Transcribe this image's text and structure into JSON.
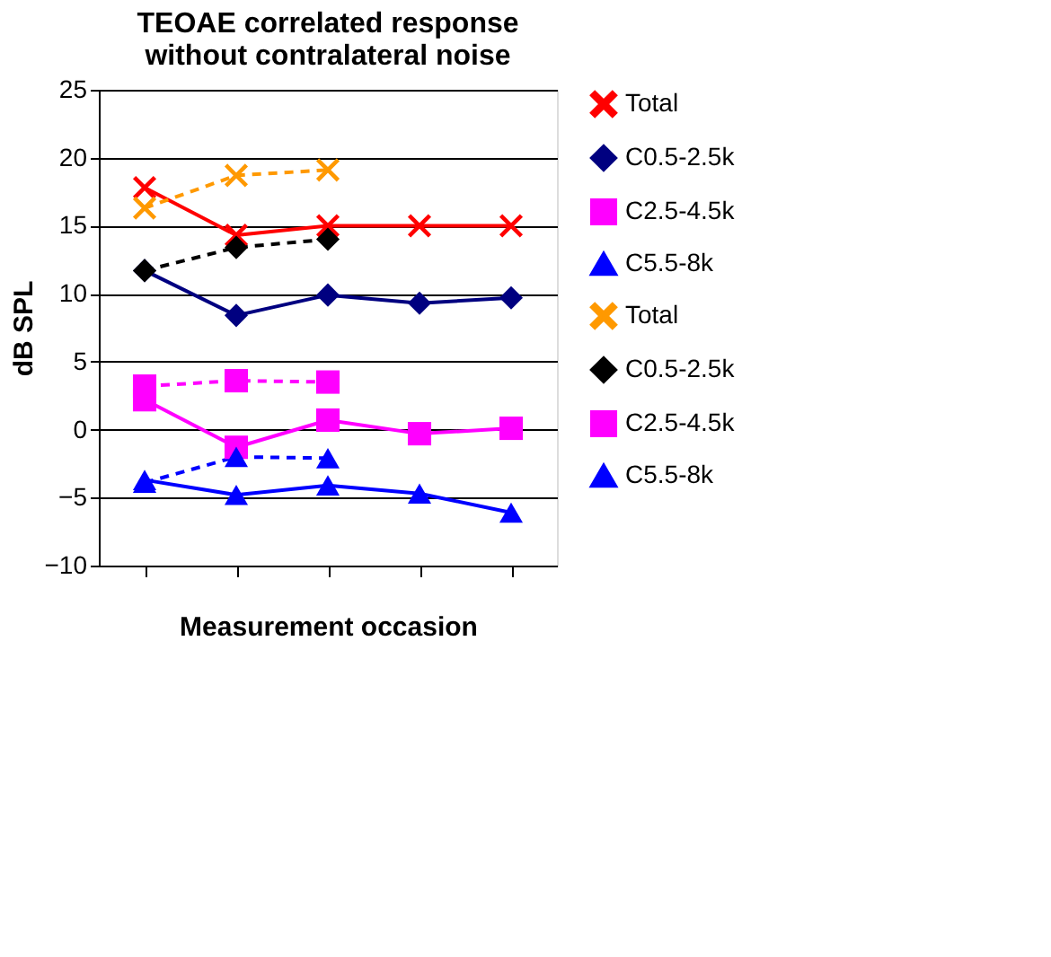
{
  "chart_data": {
    "type": "line",
    "title": "TEOAE correlated response\nwithout contralateral noise",
    "xlabel": "Measurement occasion",
    "ylabel": "dB SPL",
    "categories": [
      null,
      null,
      null,
      null,
      null
    ],
    "ylim": [
      -10,
      25
    ],
    "yticks": [
      -10,
      -5,
      0,
      5,
      10,
      15,
      20,
      25
    ],
    "grid": "y",
    "legend": "right",
    "series": [
      {
        "name": "Total",
        "color": "#ff0000",
        "marker": "cross",
        "line_style": "solid",
        "values": [
          17.8,
          14.3,
          15,
          15,
          15
        ]
      },
      {
        "name": "C0.5-2.5k",
        "color": "#000080",
        "marker": "diamond",
        "line_style": "solid",
        "values": [
          11.7,
          8.4,
          9.9,
          9.3,
          9.7
        ]
      },
      {
        "name": "C2.5-4.5k",
        "color": "#ff00ff",
        "marker": "square",
        "line_style": "solid",
        "values": [
          2.2,
          -1.3,
          0.7,
          -0.3,
          0.1
        ]
      },
      {
        "name": "C5.5-8k",
        "color": "#0000ff",
        "marker": "triangle",
        "line_style": "solid",
        "values": [
          -3.7,
          -4.8,
          -4.1,
          -4.7,
          -6.1
        ]
      },
      {
        "name": "Total",
        "color": "#ff9900",
        "marker": "cross",
        "line_style": "dashed",
        "values": [
          16.3,
          18.7,
          19.1,
          null,
          null
        ]
      },
      {
        "name": "C0.5-2.5k",
        "color": "#000000",
        "marker": "diamond",
        "line_style": "dashed",
        "values": [
          11.7,
          13.4,
          14.0,
          null,
          null
        ]
      },
      {
        "name": "C2.5-4.5k",
        "color": "#ff00ff",
        "marker": "square",
        "line_style": "dashed",
        "values": [
          3.2,
          3.6,
          3.5,
          null,
          null
        ]
      },
      {
        "name": "C5.5-8k",
        "color": "#0000ff",
        "marker": "triangle",
        "line_style": "dashed",
        "values": [
          -3.9,
          -2.0,
          -2.1,
          null,
          null
        ]
      }
    ]
  }
}
